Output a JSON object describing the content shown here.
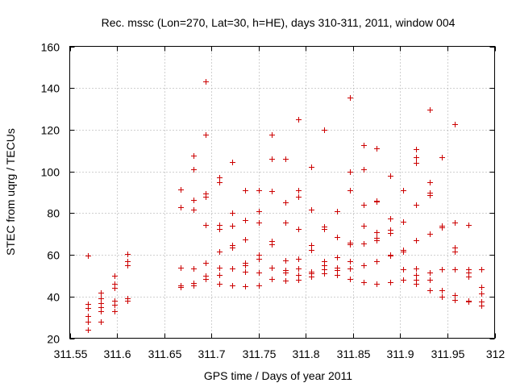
{
  "chart_data": {
    "type": "scatter",
    "title": "Rec. mssc (Lon=270, Lat=30, h=HE), days 310-311, 2011, window 004",
    "xlabel": "GPS time / Days of year 2011",
    "ylabel": "STEC from uqrg / TECUs",
    "xlim": [
      311.55,
      312
    ],
    "ylim": [
      20,
      160
    ],
    "xticks": [
      311.55,
      311.6,
      311.65,
      311.7,
      311.75,
      311.8,
      311.85,
      311.9,
      311.95,
      312
    ],
    "xtick_labels": [
      "311.55",
      "311.6",
      "311.65",
      "311.7",
      "311.75",
      "311.8",
      "311.85",
      "311.9",
      "311.95",
      "312"
    ],
    "yticks": [
      20,
      40,
      60,
      80,
      100,
      120,
      140,
      160
    ],
    "ytick_labels": [
      "20",
      "40",
      "60",
      "80",
      "100",
      "120",
      "140",
      "160"
    ],
    "grid": true,
    "marker": "+",
    "color": "#cc0000",
    "points": [
      [
        311.569,
        59.5
      ],
      [
        311.569,
        36.5
      ],
      [
        311.569,
        34.5
      ],
      [
        311.569,
        30.5
      ],
      [
        311.569,
        28
      ],
      [
        311.569,
        24
      ],
      [
        311.583,
        42
      ],
      [
        311.583,
        39
      ],
      [
        311.583,
        37
      ],
      [
        311.583,
        35
      ],
      [
        311.583,
        33
      ],
      [
        311.583,
        28
      ],
      [
        311.597,
        50
      ],
      [
        311.597,
        46
      ],
      [
        311.597,
        44
      ],
      [
        311.597,
        38
      ],
      [
        311.597,
        36
      ],
      [
        311.597,
        33
      ],
      [
        311.611,
        60.5
      ],
      [
        311.611,
        57
      ],
      [
        311.611,
        55
      ],
      [
        311.611,
        39
      ],
      [
        311.611,
        38
      ],
      [
        311.667,
        91.5
      ],
      [
        311.667,
        83
      ],
      [
        311.667,
        54
      ],
      [
        311.667,
        45.5
      ],
      [
        311.667,
        44.5
      ],
      [
        311.681,
        107.5
      ],
      [
        311.681,
        101
      ],
      [
        311.681,
        86.5
      ],
      [
        311.681,
        81.5
      ],
      [
        311.681,
        53.5
      ],
      [
        311.681,
        46.5
      ],
      [
        311.681,
        45.5
      ],
      [
        311.694,
        143
      ],
      [
        311.694,
        117.5
      ],
      [
        311.694,
        89.5
      ],
      [
        311.694,
        88
      ],
      [
        311.694,
        74.5
      ],
      [
        311.694,
        56
      ],
      [
        311.694,
        50
      ],
      [
        311.694,
        48.5
      ],
      [
        311.708,
        97
      ],
      [
        311.708,
        95
      ],
      [
        311.708,
        74.5
      ],
      [
        311.708,
        72.5
      ],
      [
        311.708,
        61.5
      ],
      [
        311.708,
        54
      ],
      [
        311.708,
        50.5
      ],
      [
        311.708,
        46
      ],
      [
        311.722,
        104.5
      ],
      [
        311.722,
        80
      ],
      [
        311.722,
        74
      ],
      [
        311.722,
        64.5
      ],
      [
        311.722,
        63.5
      ],
      [
        311.722,
        53.5
      ],
      [
        311.722,
        45.5
      ],
      [
        311.736,
        91
      ],
      [
        311.736,
        76.5
      ],
      [
        311.736,
        67.5
      ],
      [
        311.736,
        56
      ],
      [
        311.736,
        55
      ],
      [
        311.736,
        52
      ],
      [
        311.736,
        45
      ],
      [
        311.75,
        91
      ],
      [
        311.75,
        81
      ],
      [
        311.75,
        75.5
      ],
      [
        311.75,
        60
      ],
      [
        311.75,
        58
      ],
      [
        311.75,
        51.5
      ],
      [
        311.75,
        45.5
      ],
      [
        311.764,
        117.5
      ],
      [
        311.764,
        106
      ],
      [
        311.764,
        90.5
      ],
      [
        311.764,
        66.5
      ],
      [
        311.764,
        65
      ],
      [
        311.764,
        54
      ],
      [
        311.764,
        48.5
      ],
      [
        311.778,
        106
      ],
      [
        311.778,
        85
      ],
      [
        311.778,
        75.5
      ],
      [
        311.778,
        57.5
      ],
      [
        311.778,
        52.5
      ],
      [
        311.778,
        51.5
      ],
      [
        311.778,
        47.5
      ],
      [
        311.792,
        125
      ],
      [
        311.792,
        91
      ],
      [
        311.792,
        88
      ],
      [
        311.792,
        72.5
      ],
      [
        311.792,
        58
      ],
      [
        311.792,
        53.5
      ],
      [
        311.792,
        50.5
      ],
      [
        311.792,
        48
      ],
      [
        311.806,
        102
      ],
      [
        311.806,
        81.5
      ],
      [
        311.806,
        64.5
      ],
      [
        311.806,
        62.5
      ],
      [
        311.806,
        52
      ],
      [
        311.806,
        51
      ],
      [
        311.806,
        49.5
      ],
      [
        311.819,
        120
      ],
      [
        311.819,
        73.5
      ],
      [
        311.819,
        72.5
      ],
      [
        311.819,
        57
      ],
      [
        311.819,
        55
      ],
      [
        311.819,
        53
      ],
      [
        311.819,
        51
      ],
      [
        311.833,
        81
      ],
      [
        311.833,
        68.5
      ],
      [
        311.833,
        59
      ],
      [
        311.833,
        54
      ],
      [
        311.833,
        52.5
      ],
      [
        311.833,
        50.5
      ],
      [
        311.847,
        135.5
      ],
      [
        311.847,
        100
      ],
      [
        311.847,
        91
      ],
      [
        311.847,
        66
      ],
      [
        311.847,
        65
      ],
      [
        311.847,
        57
      ],
      [
        311.847,
        53.5
      ],
      [
        311.847,
        48.5
      ],
      [
        311.861,
        112.5
      ],
      [
        311.861,
        101
      ],
      [
        311.861,
        84
      ],
      [
        311.861,
        74
      ],
      [
        311.861,
        65.5
      ],
      [
        311.861,
        55
      ],
      [
        311.861,
        47
      ],
      [
        311.875,
        111
      ],
      [
        311.875,
        86
      ],
      [
        311.875,
        85.5
      ],
      [
        311.875,
        71
      ],
      [
        311.875,
        68
      ],
      [
        311.875,
        67
      ],
      [
        311.875,
        57
      ],
      [
        311.875,
        46
      ],
      [
        311.889,
        98
      ],
      [
        311.889,
        77.5
      ],
      [
        311.889,
        72
      ],
      [
        311.889,
        70.5
      ],
      [
        311.889,
        60
      ],
      [
        311.889,
        59.5
      ],
      [
        311.889,
        47
      ],
      [
        311.903,
        91
      ],
      [
        311.903,
        76
      ],
      [
        311.903,
        62.5
      ],
      [
        311.903,
        61.5
      ],
      [
        311.903,
        53
      ],
      [
        311.903,
        48
      ],
      [
        311.917,
        110.5
      ],
      [
        311.917,
        107
      ],
      [
        311.917,
        104
      ],
      [
        311.917,
        84
      ],
      [
        311.917,
        67
      ],
      [
        311.917,
        53.5
      ],
      [
        311.917,
        50.5
      ],
      [
        311.917,
        48
      ],
      [
        311.917,
        46
      ],
      [
        311.931,
        129.5
      ],
      [
        311.931,
        95
      ],
      [
        311.931,
        90
      ],
      [
        311.931,
        88.5
      ],
      [
        311.931,
        70
      ],
      [
        311.931,
        51.5
      ],
      [
        311.931,
        48
      ],
      [
        311.931,
        43
      ],
      [
        311.944,
        107
      ],
      [
        311.944,
        74
      ],
      [
        311.944,
        73
      ],
      [
        311.944,
        53
      ],
      [
        311.944,
        43
      ],
      [
        311.944,
        40
      ],
      [
        311.958,
        122.5
      ],
      [
        311.958,
        75.5
      ],
      [
        311.958,
        63.5
      ],
      [
        311.958,
        61.5
      ],
      [
        311.958,
        53
      ],
      [
        311.958,
        40.5
      ],
      [
        311.958,
        38.5
      ],
      [
        311.972,
        74.5
      ],
      [
        311.972,
        53
      ],
      [
        311.972,
        51.5
      ],
      [
        311.972,
        49.5
      ],
      [
        311.972,
        38
      ],
      [
        311.972,
        37.5
      ],
      [
        311.986,
        53
      ],
      [
        311.986,
        44.5
      ],
      [
        311.986,
        41.5
      ],
      [
        311.986,
        37.5
      ],
      [
        311.986,
        35.5
      ]
    ]
  }
}
